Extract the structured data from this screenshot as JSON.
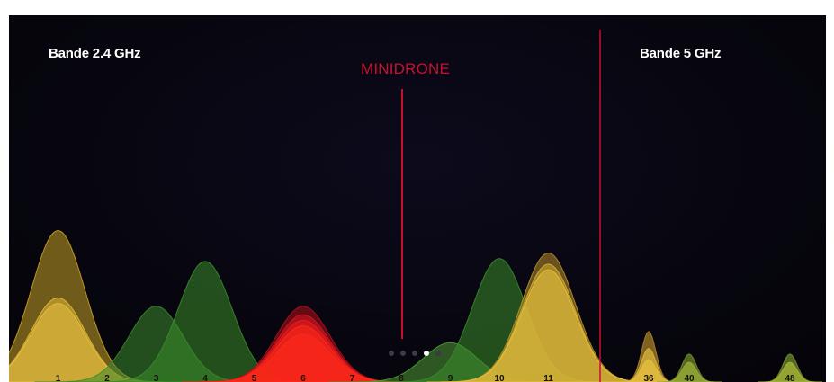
{
  "chart_data": {
    "type": "area",
    "bands": [
      {
        "title": "Bande 2.4 GHz"
      },
      {
        "title": "Bande 5 GHz"
      }
    ],
    "highlight_label": "MINIDRONE",
    "channels_24": [
      "1",
      "2",
      "3",
      "4",
      "5",
      "6",
      "7",
      "8",
      "9",
      "10",
      "11"
    ],
    "channels_5": [
      "36",
      "40",
      "48"
    ],
    "x_range": [
      0.2,
      12.3
    ],
    "series": [
      {
        "group": "2.4",
        "center": 1,
        "height": 0.54,
        "color": "#c9a227"
      },
      {
        "group": "2.4",
        "center": 1,
        "height": 0.3,
        "color": "#e0b838"
      },
      {
        "group": "2.4",
        "center": 1,
        "height": 0.28,
        "color": "#e6c040"
      },
      {
        "group": "2.4",
        "center": 3,
        "height": 0.27,
        "color": "#3d8a2e"
      },
      {
        "group": "2.4",
        "center": 4,
        "height": 0.43,
        "color": "#3a8c2a"
      },
      {
        "group": "2.4",
        "center": 6,
        "height": 0.27,
        "color": "#b0101a"
      },
      {
        "group": "2.4",
        "center": 6,
        "height": 0.24,
        "color": "#d81520"
      },
      {
        "group": "2.4",
        "center": 6,
        "height": 0.22,
        "color": "#ee1c1c"
      },
      {
        "group": "2.4",
        "center": 6,
        "height": 0.2,
        "color": "#ff2a1a"
      },
      {
        "group": "2.4",
        "center": 6,
        "height": 0.17,
        "color": "#ff2a1a"
      },
      {
        "group": "2.4",
        "center": 9,
        "height": 0.14,
        "color": "#4e9a35"
      },
      {
        "group": "2.4",
        "center": 10,
        "height": 0.44,
        "color": "#3a8c2a"
      },
      {
        "group": "2.4",
        "center": 11,
        "height": 0.46,
        "color": "#b8902a"
      },
      {
        "group": "2.4",
        "center": 11,
        "height": 0.42,
        "color": "#d4b030"
      },
      {
        "group": "2.4",
        "center": 11,
        "height": 0.4,
        "color": "#e6c040"
      },
      {
        "group": "5",
        "center": 36,
        "height": 0.18,
        "color": "#a8822a"
      },
      {
        "group": "5",
        "center": 36,
        "height": 0.12,
        "color": "#d9b53a"
      },
      {
        "group": "5",
        "center": 36,
        "height": 0.08,
        "color": "#e6c040"
      },
      {
        "group": "5",
        "center": 40,
        "height": 0.1,
        "color": "#6f8a2a"
      },
      {
        "group": "5",
        "center": 40,
        "height": 0.07,
        "color": "#9cb03a"
      },
      {
        "group": "5",
        "center": 48,
        "height": 0.1,
        "color": "#6f8a2a"
      },
      {
        "group": "5",
        "center": 48,
        "height": 0.07,
        "color": "#a8b83a"
      }
    ],
    "pager": {
      "count": 5,
      "active": 3
    },
    "colors": {
      "divider": "#c8102e",
      "drone_line": "#c8102e",
      "background": "#07060f"
    }
  }
}
